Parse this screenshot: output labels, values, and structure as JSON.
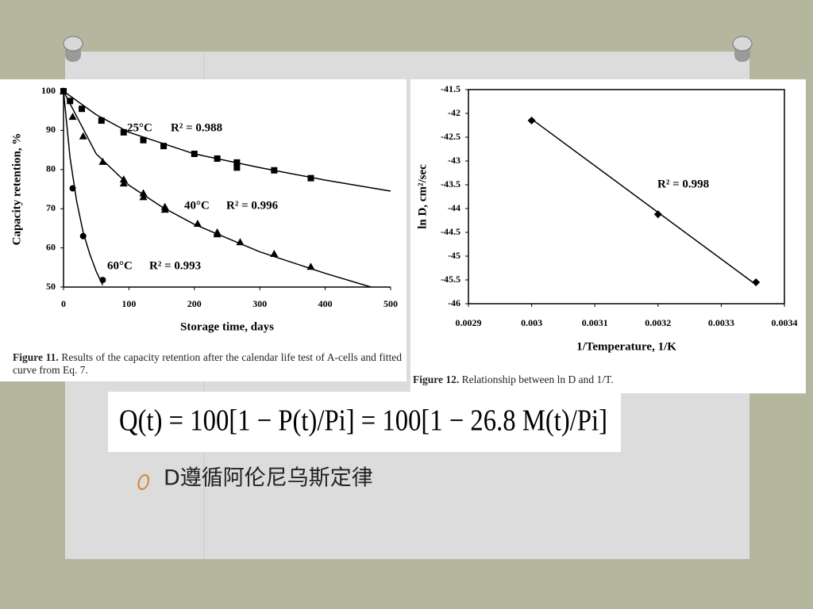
{
  "chart_data": [
    {
      "type": "scatter",
      "xlabel": "Storage time, days",
      "ylabel": "Capacity retention, %",
      "xlim": [
        0,
        500
      ],
      "xticks": [
        0,
        100,
        200,
        300,
        400,
        500
      ],
      "ylim": [
        50,
        100
      ],
      "yticks": [
        50,
        60,
        70,
        80,
        90,
        100
      ],
      "series": [
        {
          "marker": "square",
          "color": "#000000",
          "x": [
            0,
            10,
            28,
            58,
            92,
            122,
            153,
            200,
            235,
            265,
            265,
            322,
            378
          ],
          "values": [
            100,
            97.5,
            95.5,
            92.5,
            89.5,
            87.5,
            86,
            84,
            82.8,
            81.8,
            80.5,
            79.8,
            77.8
          ]
        },
        {
          "marker": "triangle",
          "color": "#000000",
          "x": [
            0,
            14,
            30,
            60,
            92,
            92,
            122,
            122,
            155,
            155,
            205,
            235,
            235,
            270,
            322,
            378
          ],
          "values": [
            100,
            93.5,
            88.5,
            82,
            77.5,
            76.5,
            74,
            73,
            70.5,
            69.8,
            66.2,
            64,
            63.5,
            61.5,
            58.5,
            55.2
          ]
        },
        {
          "marker": "circle",
          "color": "#000000",
          "x": [
            0,
            14,
            30,
            60
          ],
          "values": [
            100,
            75.2,
            63,
            51.8
          ]
        },
        {
          "marker": "line",
          "color": "#000000",
          "x": [
            0,
            50,
            100,
            200,
            300,
            400,
            500
          ],
          "values": [
            100,
            94,
            89.5,
            84,
            80.5,
            77.3,
            74.5
          ]
        },
        {
          "marker": "line",
          "color": "#000000",
          "x": [
            0,
            50,
            100,
            150,
            200,
            300,
            400,
            470
          ],
          "values": [
            100,
            84,
            76,
            70.5,
            66,
            59,
            53.5,
            50
          ]
        },
        {
          "marker": "line",
          "color": "#000000",
          "x": [
            0,
            10,
            20,
            30,
            40,
            50,
            60
          ],
          "values": [
            100,
            83,
            72,
            64,
            58.5,
            54,
            50.5
          ]
        }
      ],
      "annotations": [
        "25°C",
        "R² = 0.988",
        "40°C",
        "R² = 0.996",
        "60°C",
        "R² = 0.993"
      ],
      "caption_label": "Figure 11.",
      "caption": "Results of the capacity retention after the calendar life test of A-cells and fitted curve from Eq. 7."
    },
    {
      "type": "scatter",
      "xlabel": "1/Temperature, 1/K",
      "ylabel": "ln D, cm²/sec",
      "xlim": [
        0.0029,
        0.0034
      ],
      "xticks": [
        0.0029,
        0.003,
        0.0031,
        0.0032,
        0.0033,
        0.0034
      ],
      "ylim": [
        -46,
        -41.5
      ],
      "yticks": [
        -46,
        -45.5,
        -45,
        -44.5,
        -44,
        -43.5,
        -43,
        -42.5,
        -42,
        -41.5
      ],
      "series": [
        {
          "marker": "diamond",
          "color": "#000000",
          "x": [
            0.003,
            0.0032,
            0.003355
          ],
          "values": [
            -42.15,
            -44.12,
            -45.55
          ]
        },
        {
          "marker": "line",
          "color": "#000000",
          "x": [
            0.003,
            0.003355
          ],
          "values": [
            -42.12,
            -45.6
          ]
        }
      ],
      "annotations": [
        "R² = 0.998"
      ],
      "caption_label": "Figure 12.",
      "caption": "Relationship between ln D and 1/T."
    }
  ],
  "slide": {
    "formula": "Q(t) = 100[1 − P(t)/Pi] = 100[1 − 26.8 M(t)/Pi]",
    "bullet": "D遵循阿伦尼乌斯定律"
  }
}
